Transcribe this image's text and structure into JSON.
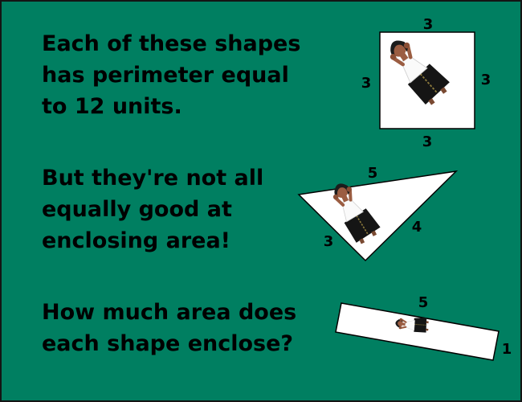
{
  "colors": {
    "background": "#007f61",
    "shape_fill": "#ffffff",
    "text": "#000000"
  },
  "text": {
    "line1": "Each of these shapes\nhas perimeter equal\nto 12 units.",
    "line2": "But they're not all\nequally good at\nenclosing area!",
    "line3": "How much area does\neach shape enclose?"
  },
  "square": {
    "top": "3",
    "left": "3",
    "right": "3",
    "bottom": "3"
  },
  "triangle": {
    "top": "5",
    "right": "4",
    "left": "3"
  },
  "rectangle": {
    "top": "5",
    "right": "1"
  }
}
